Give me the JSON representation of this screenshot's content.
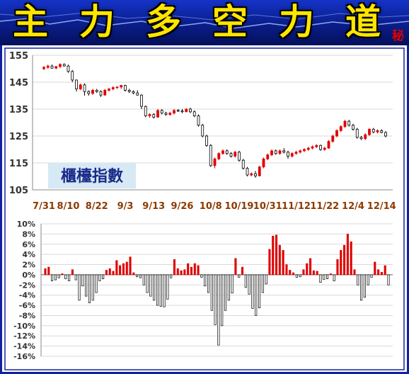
{
  "banner": {
    "title_chars": [
      "主",
      "力",
      "多",
      "空",
      "力",
      "道"
    ],
    "secret_mark": "秘",
    "colors": {
      "background": "#0a1f8f",
      "text": "#ffe600",
      "frame": "#1020a0"
    }
  },
  "colors": {
    "up": "#e00000",
    "down": "#000000",
    "axis_label": "#333333",
    "date_label": "#8b3a00",
    "grid": "#d9d9d9",
    "index_badge_bg": "#d6e9f5",
    "index_badge_text": "#1a2a8a"
  },
  "chart_data": [
    {
      "type": "candlestick",
      "title": "櫃檯指數",
      "ylim": [
        105,
        155
      ],
      "yticks": [
        105,
        115,
        125,
        135,
        145,
        155
      ],
      "xticks": [
        "7/31",
        "8/10",
        "8/22",
        "9/3",
        "9/13",
        "9/26",
        "10/8",
        "10/19",
        "10/31",
        "11/12",
        "11/22",
        "12/4",
        "12/14"
      ],
      "xtick_index": [
        0,
        6,
        13,
        20,
        27,
        34,
        41,
        48,
        55,
        62,
        69,
        76,
        83
      ],
      "grid": true,
      "ohlc": [
        [
          150,
          151,
          149.5,
          150.5
        ],
        [
          150.5,
          151.5,
          150,
          151
        ],
        [
          151,
          151.5,
          150,
          150.2
        ],
        [
          150.2,
          151,
          149.8,
          150.8
        ],
        [
          150.8,
          152,
          150.2,
          151.6
        ],
        [
          151.6,
          152,
          150.8,
          151
        ],
        [
          151,
          151.5,
          148.5,
          149
        ],
        [
          149,
          149.5,
          145,
          145.8
        ],
        [
          145.8,
          146,
          141.5,
          142.5
        ],
        [
          142.5,
          144.5,
          142,
          144
        ],
        [
          144,
          144.5,
          140,
          141.5
        ],
        [
          141.5,
          142,
          140,
          140.8
        ],
        [
          140.8,
          142.5,
          140.3,
          142
        ],
        [
          142,
          142.5,
          141,
          141.5
        ],
        [
          141.5,
          142,
          139.5,
          140.2
        ],
        [
          140.2,
          142.5,
          140,
          142
        ],
        [
          142,
          142.8,
          141.5,
          142.5
        ],
        [
          142.5,
          143.5,
          142,
          143
        ],
        [
          143,
          143.5,
          142.5,
          143.2
        ],
        [
          143.2,
          144,
          142.5,
          143.8
        ],
        [
          143.8,
          144,
          141.5,
          142
        ],
        [
          142,
          142.5,
          141,
          141.5
        ],
        [
          141.5,
          142,
          140.5,
          141
        ],
        [
          141,
          142,
          140,
          140.2
        ],
        [
          140.2,
          140.5,
          135,
          136
        ],
        [
          136,
          136.3,
          132,
          132.5
        ],
        [
          132.5,
          133.5,
          131.8,
          133
        ],
        [
          133,
          133.5,
          131.5,
          132
        ],
        [
          132,
          135,
          131.8,
          134.5
        ],
        [
          134.5,
          135,
          133,
          133.5
        ],
        [
          133.5,
          134,
          132.5,
          133
        ],
        [
          133,
          134,
          132.5,
          133.5
        ],
        [
          133.5,
          135,
          133,
          134.5
        ],
        [
          134.5,
          135,
          134,
          134.3
        ],
        [
          134.3,
          135,
          133.5,
          134
        ],
        [
          134,
          135.3,
          133.8,
          135
        ],
        [
          135,
          135.5,
          133.5,
          134
        ],
        [
          134,
          134.5,
          132,
          132.5
        ],
        [
          132.5,
          133,
          128.5,
          129
        ],
        [
          129,
          129.5,
          124.5,
          125
        ],
        [
          125,
          125.5,
          121,
          121.5
        ],
        [
          121.5,
          122,
          113.5,
          114
        ],
        [
          114,
          117,
          113,
          116.5
        ],
        [
          116.5,
          119,
          116,
          118.5
        ],
        [
          118.5,
          120,
          118,
          119.5
        ],
        [
          119.5,
          120,
          118,
          118.5
        ],
        [
          118.5,
          119,
          117,
          117.5
        ],
        [
          117.5,
          119.5,
          117,
          119
        ],
        [
          119,
          119.5,
          115.5,
          116
        ],
        [
          116,
          116.5,
          112.5,
          113
        ],
        [
          113,
          113.5,
          110,
          110.5
        ],
        [
          110.5,
          111.5,
          110,
          111
        ],
        [
          111,
          112,
          109.5,
          110.2
        ],
        [
          110.2,
          114,
          110,
          113.5
        ],
        [
          113.5,
          117,
          113,
          116.5
        ],
        [
          116.5,
          118.5,
          116,
          118
        ],
        [
          118,
          120,
          117.5,
          119.5
        ],
        [
          119.5,
          120,
          118,
          118.5
        ],
        [
          118.5,
          120,
          118,
          119.5
        ],
        [
          119.5,
          120.5,
          118.5,
          119
        ],
        [
          119,
          119.5,
          116.5,
          117.5
        ],
        [
          117.5,
          119,
          117,
          118.5
        ],
        [
          118.5,
          119.5,
          118,
          119
        ],
        [
          119,
          120,
          118.5,
          119.5
        ],
        [
          119.5,
          120.5,
          119,
          120
        ],
        [
          120,
          121,
          119.5,
          120.5
        ],
        [
          120.5,
          121.5,
          120,
          121
        ],
        [
          121,
          122,
          120.5,
          121.5
        ],
        [
          121.5,
          121.8,
          119.5,
          120
        ],
        [
          120,
          121,
          119.5,
          120.5
        ],
        [
          120.5,
          123.5,
          120.2,
          123
        ],
        [
          123,
          125.5,
          122.5,
          125
        ],
        [
          125,
          127.5,
          124.5,
          127
        ],
        [
          127,
          129,
          126.5,
          128.5
        ],
        [
          128.5,
          131,
          128,
          130.5
        ],
        [
          130.5,
          131,
          128.5,
          129
        ],
        [
          129,
          129.5,
          127,
          127.5
        ],
        [
          127.5,
          128,
          124,
          124.5
        ],
        [
          124.5,
          125,
          123.5,
          124
        ],
        [
          124,
          126,
          123.5,
          125.5
        ],
        [
          125.5,
          128,
          125,
          127.5
        ],
        [
          127.5,
          128,
          126,
          126.5
        ],
        [
          126.5,
          127.5,
          126,
          127
        ],
        [
          127,
          127.5,
          126,
          126.3
        ],
        [
          126.3,
          126.8,
          124.5,
          125
        ]
      ]
    },
    {
      "type": "bar",
      "ylim": [
        -16,
        10
      ],
      "yticks": [
        10,
        8,
        6,
        4,
        2,
        0,
        -2,
        -4,
        -6,
        -8,
        -10,
        -12,
        -14,
        -16
      ],
      "ytick_labels": [
        "10%",
        "8%",
        "6%",
        "4%",
        "2%",
        "0%",
        "-2%",
        "-4%",
        "-6%",
        "-8%",
        "-10%",
        "-12%",
        "-14%",
        "-16%"
      ],
      "grid": true,
      "values": [
        1.2,
        1.5,
        -1.2,
        -1.0,
        -0.6,
        0.2,
        -0.8,
        -1.2,
        1.0,
        -1.0,
        -5.0,
        -2.2,
        -4.2,
        -5.5,
        -5.0,
        -3.5,
        -1.2,
        -0.8,
        0.9,
        1.2,
        0.7,
        2.8,
        1.8,
        2.2,
        2.5,
        3.5,
        0.4,
        -0.4,
        -0.6,
        -2.0,
        -3.5,
        -4.2,
        -5.0,
        -6.0,
        -6.2,
        -6.3,
        -4.8,
        -0.6,
        3.0,
        1.2,
        0.8,
        1.0,
        2.2,
        1.5,
        2.2,
        1.8,
        -0.5,
        -2.2,
        -3.5,
        -7.0,
        -9.8,
        -13.8,
        -10.0,
        -7.0,
        -5.0,
        -3.6,
        3.2,
        -0.5,
        1.5,
        -2.5,
        -3.8,
        -6.6,
        -8.0,
        -6.5,
        -3.5,
        -1.8,
        5.0,
        7.6,
        7.8,
        5.8,
        4.8,
        2.0,
        0.9,
        0.4,
        -0.5,
        -0.4,
        1.0,
        2.2,
        3.2,
        0.8,
        0.7,
        -1.5,
        -0.9,
        -0.8,
        0.2,
        -1.2,
        3.0,
        4.8,
        5.8,
        8.0,
        6.5,
        1.0,
        -2.0,
        -5.0,
        -4.4,
        -2.0,
        -0.5,
        2.5,
        1.0,
        0.5,
        1.8,
        -2.0
      ]
    }
  ]
}
